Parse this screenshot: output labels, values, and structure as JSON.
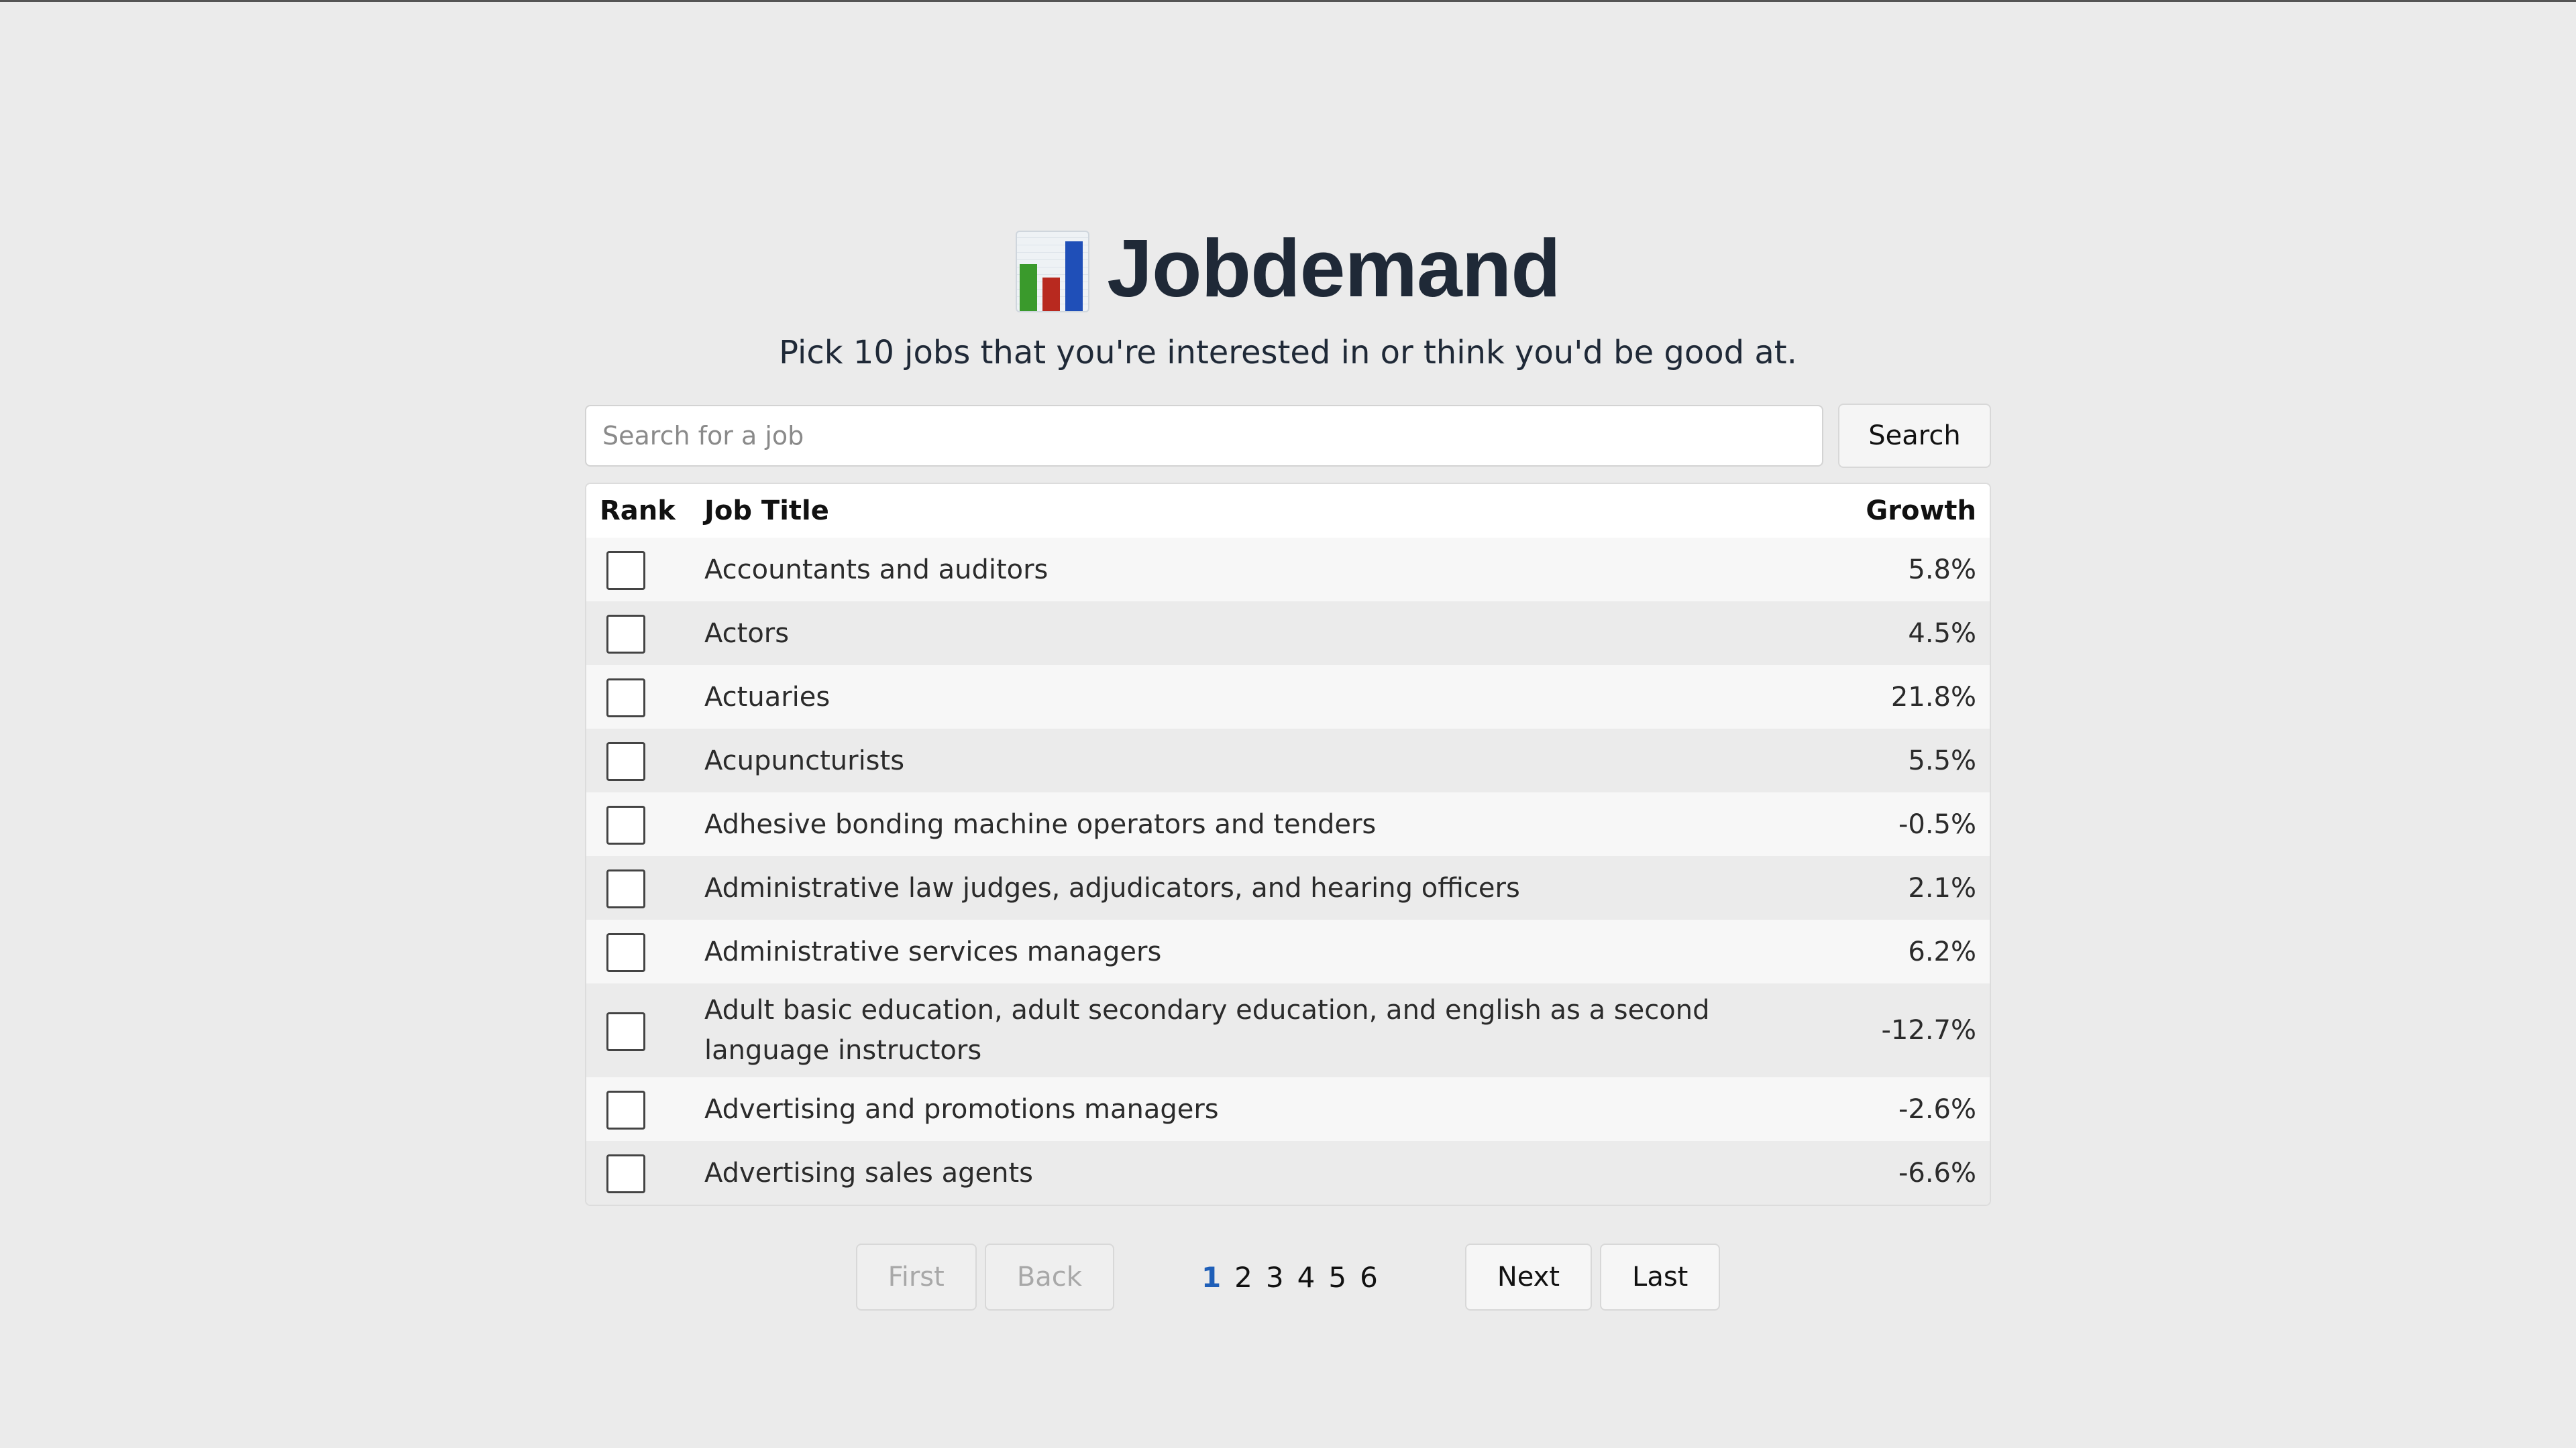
{
  "app": {
    "title": "Jobdemand",
    "logo_icon": "bar-chart-icon",
    "subtitle": "Pick 10 jobs that you're interested in or think you'd be good at."
  },
  "search": {
    "placeholder": "Search for a job",
    "value": "",
    "button_label": "Search"
  },
  "table": {
    "columns": [
      "Rank",
      "Job Title",
      "Growth"
    ],
    "rows": [
      {
        "title": "Accountants and auditors",
        "growth": "5.8%"
      },
      {
        "title": "Actors",
        "growth": "4.5%"
      },
      {
        "title": "Actuaries",
        "growth": "21.8%"
      },
      {
        "title": "Acupuncturists",
        "growth": "5.5%"
      },
      {
        "title": "Adhesive bonding machine operators and tenders",
        "growth": "-0.5%"
      },
      {
        "title": "Administrative law judges, adjudicators, and hearing officers",
        "growth": "2.1%"
      },
      {
        "title": "Administrative services managers",
        "growth": "6.2%"
      },
      {
        "title": "Adult basic education, adult secondary education, and english as a second language instructors",
        "growth": "-12.7%"
      },
      {
        "title": "Advertising and promotions managers",
        "growth": "-2.6%"
      },
      {
        "title": "Advertising sales agents",
        "growth": "-6.6%"
      }
    ]
  },
  "pagination": {
    "first_label": "First",
    "back_label": "Back",
    "pages": [
      "1",
      "2",
      "3",
      "4",
      "5",
      "6"
    ],
    "current_page": "1",
    "next_label": "Next",
    "last_label": "Last"
  },
  "colors": {
    "background": "#ebebeb",
    "active_page": "#1f5fb8",
    "title_text": "#1f2937"
  }
}
